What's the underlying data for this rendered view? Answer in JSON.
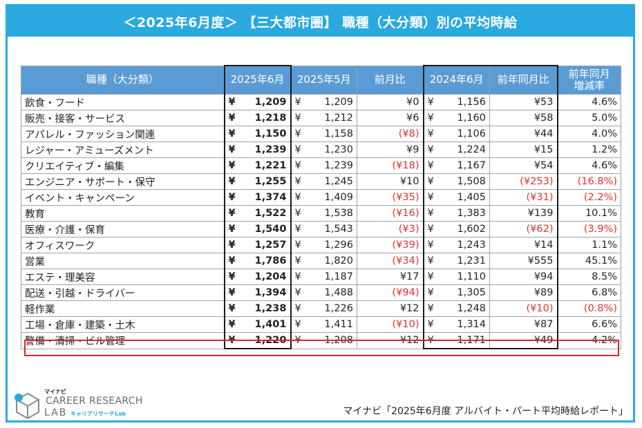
{
  "title": "＜2025年6月度＞ 【三大都市圏】 職種（大分類）別の平均時給",
  "table": {
    "headers": {
      "category": "職種（大分類）",
      "cur": "2025年6月",
      "prev_month": "2025年5月",
      "mom": "前月比",
      "last_year": "2024年6月",
      "yoy": "前年同月比",
      "yoy_rate": "前年同月\n増減率"
    },
    "yen": "¥",
    "rows": [
      {
        "category": "飲食・フード",
        "cur": "1,209",
        "prev_month": "1,209",
        "mom": "¥0",
        "mom_neg": false,
        "last_year": "1,156",
        "yoy": "¥53",
        "yoy_neg": false,
        "yoy_rate": "4.6%",
        "rate_neg": false
      },
      {
        "category": "販売・接客・サービス",
        "cur": "1,218",
        "prev_month": "1,212",
        "mom": "¥6",
        "mom_neg": false,
        "last_year": "1,160",
        "yoy": "¥58",
        "yoy_neg": false,
        "yoy_rate": "5.0%",
        "rate_neg": false
      },
      {
        "category": "アパレル・ファッション関連",
        "cur": "1,150",
        "prev_month": "1,158",
        "mom": "(¥8)",
        "mom_neg": true,
        "last_year": "1,106",
        "yoy": "¥44",
        "yoy_neg": false,
        "yoy_rate": "4.0%",
        "rate_neg": false
      },
      {
        "category": "レジャー・アミューズメント",
        "cur": "1,239",
        "prev_month": "1,230",
        "mom": "¥9",
        "mom_neg": false,
        "last_year": "1,224",
        "yoy": "¥15",
        "yoy_neg": false,
        "yoy_rate": "1.2%",
        "rate_neg": false
      },
      {
        "category": "クリエイティブ・編集",
        "cur": "1,221",
        "prev_month": "1,239",
        "mom": "(¥18)",
        "mom_neg": true,
        "last_year": "1,167",
        "yoy": "¥54",
        "yoy_neg": false,
        "yoy_rate": "4.6%",
        "rate_neg": false
      },
      {
        "category": "エンジニア・サポート・保守",
        "cur": "1,255",
        "prev_month": "1,245",
        "mom": "¥10",
        "mom_neg": false,
        "last_year": "1,508",
        "yoy": "(¥253)",
        "yoy_neg": true,
        "yoy_rate": "(16.8%)",
        "rate_neg": true
      },
      {
        "category": "イベント・キャンペーン",
        "cur": "1,374",
        "prev_month": "1,409",
        "mom": "(¥35)",
        "mom_neg": true,
        "last_year": "1,405",
        "yoy": "(¥31)",
        "yoy_neg": true,
        "yoy_rate": "(2.2%)",
        "rate_neg": true
      },
      {
        "category": "教育",
        "cur": "1,522",
        "prev_month": "1,538",
        "mom": "(¥16)",
        "mom_neg": true,
        "last_year": "1,383",
        "yoy": "¥139",
        "yoy_neg": false,
        "yoy_rate": "10.1%",
        "rate_neg": false
      },
      {
        "category": "医療・介護・保育",
        "cur": "1,540",
        "prev_month": "1,543",
        "mom": "(¥3)",
        "mom_neg": true,
        "last_year": "1,602",
        "yoy": "(¥62)",
        "yoy_neg": true,
        "yoy_rate": "(3.9%)",
        "rate_neg": true
      },
      {
        "category": "オフィスワーク",
        "cur": "1,257",
        "prev_month": "1,296",
        "mom": "(¥39)",
        "mom_neg": true,
        "last_year": "1,243",
        "yoy": "¥14",
        "yoy_neg": false,
        "yoy_rate": "1.1%",
        "rate_neg": false
      },
      {
        "category": "営業",
        "cur": "1,786",
        "prev_month": "1,820",
        "mom": "(¥34)",
        "mom_neg": true,
        "last_year": "1,231",
        "yoy": "¥555",
        "yoy_neg": false,
        "yoy_rate": "45.1%",
        "rate_neg": false
      },
      {
        "category": "エステ・理美容",
        "cur": "1,204",
        "prev_month": "1,187",
        "mom": "¥17",
        "mom_neg": false,
        "last_year": "1,110",
        "yoy": "¥94",
        "yoy_neg": false,
        "yoy_rate": "8.5%",
        "rate_neg": false
      },
      {
        "category": "配送・引越・ドライバー",
        "cur": "1,394",
        "prev_month": "1,488",
        "mom": "(¥94)",
        "mom_neg": true,
        "last_year": "1,305",
        "yoy": "¥89",
        "yoy_neg": false,
        "yoy_rate": "6.8%",
        "rate_neg": false
      },
      {
        "category": "軽作業",
        "cur": "1,238",
        "prev_month": "1,226",
        "mom": "¥12",
        "mom_neg": false,
        "last_year": "1,248",
        "yoy": "(¥10)",
        "yoy_neg": true,
        "yoy_rate": "(0.8%)",
        "rate_neg": true
      },
      {
        "category": "工場・倉庫・建築・土木",
        "cur": "1,401",
        "prev_month": "1,411",
        "mom": "(¥10)",
        "mom_neg": true,
        "last_year": "1,314",
        "yoy": "¥87",
        "yoy_neg": false,
        "yoy_rate": "6.6%",
        "rate_neg": false
      },
      {
        "category": "警備・清掃・ビル管理",
        "cur": "1,220",
        "prev_month": "1,208",
        "mom": "¥12",
        "mom_neg": false,
        "last_year": "1,171",
        "yoy": "¥49",
        "yoy_neg": false,
        "yoy_rate": "4.2%",
        "rate_neg": false
      }
    ]
  },
  "logo": {
    "small": "マイナビ",
    "main": "CAREER RESEARCH",
    "lab": "LAB",
    "sub": "キャリアリサーチLab"
  },
  "source": "マイナビ「2025年6月度 アルバイト・パート平均時給レポート」",
  "colors": {
    "accent": "#29a9e0",
    "header_bg": "#5b9bd5",
    "negative": "#e03030",
    "highlight_border": "#d9242b"
  }
}
